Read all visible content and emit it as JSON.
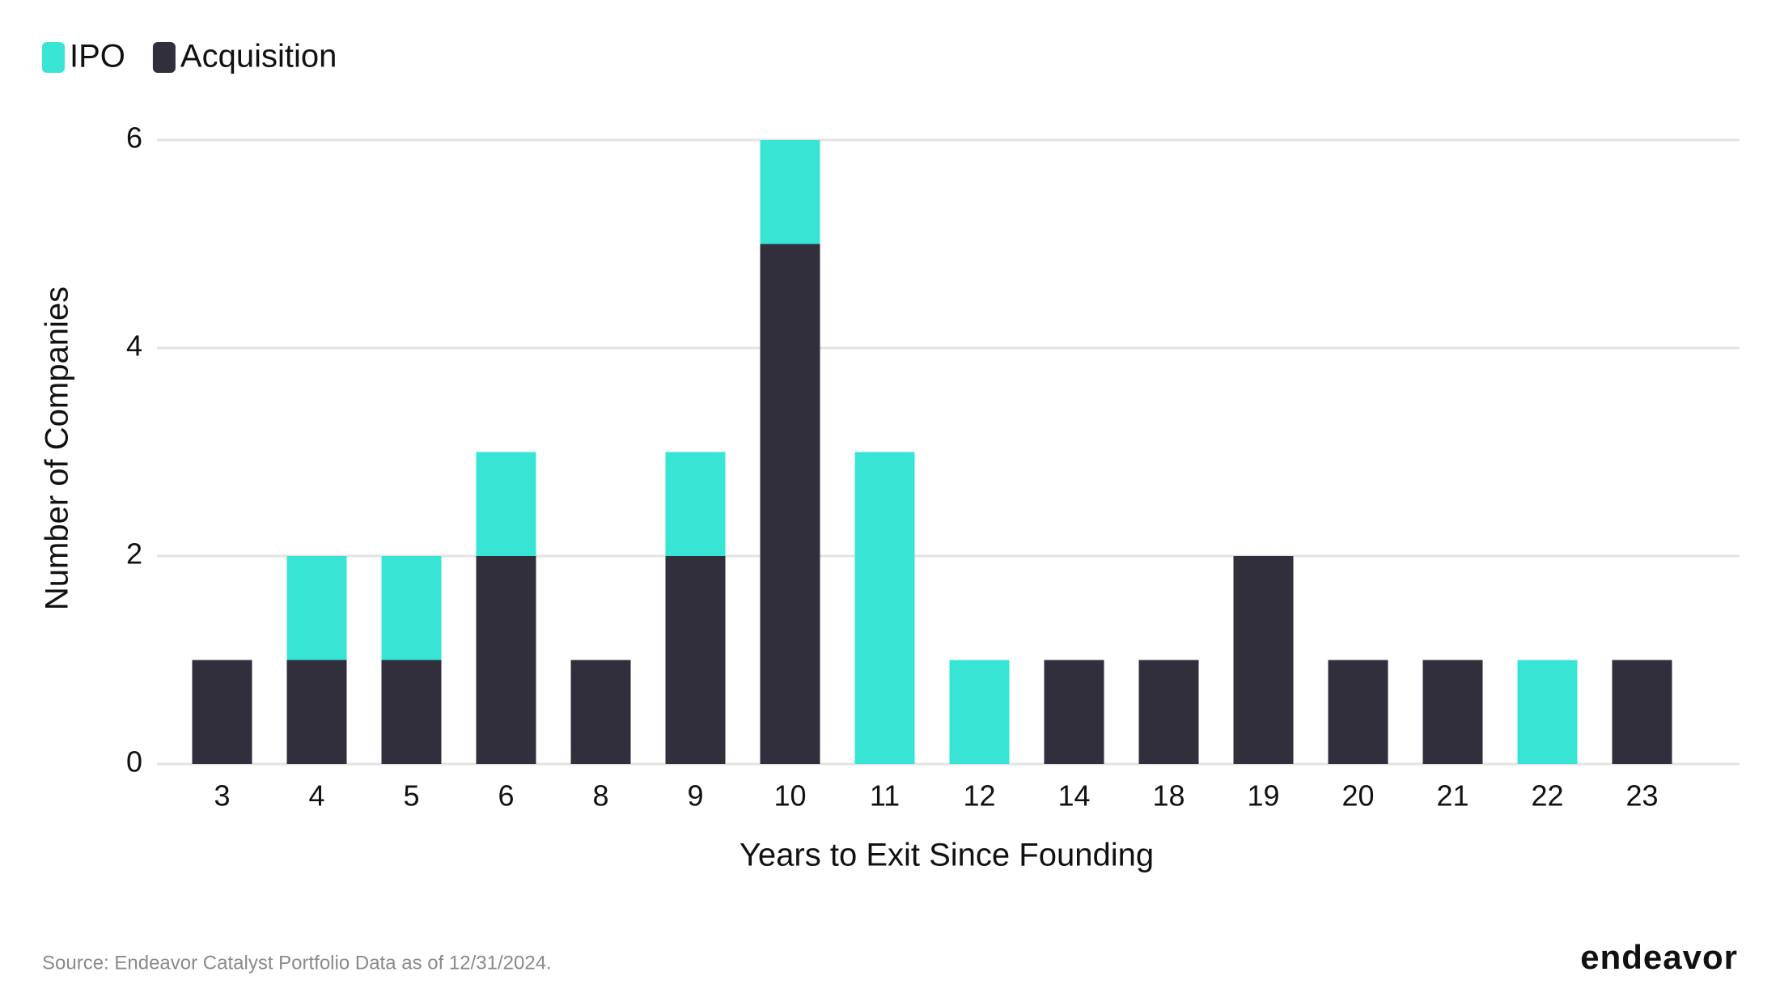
{
  "chart_data": {
    "type": "stacked-bar",
    "x_label": "Years to Exit Since Founding",
    "y_label": "Number of Companies",
    "categories": [
      "3",
      "4",
      "5",
      "6",
      "8",
      "9",
      "10",
      "11",
      "12",
      "14",
      "18",
      "19",
      "20",
      "21",
      "22",
      "23"
    ],
    "series": [
      {
        "name": "Acquisition",
        "color": "#302f3b",
        "values": [
          1,
          1,
          1,
          2,
          1,
          2,
          5,
          0,
          0,
          1,
          1,
          2,
          1,
          1,
          0,
          1
        ]
      },
      {
        "name": "IPO",
        "color": "#38e5d5",
        "values": [
          0,
          1,
          1,
          1,
          0,
          1,
          1,
          3,
          1,
          0,
          0,
          0,
          0,
          0,
          1,
          0
        ]
      }
    ],
    "legend_order": [
      1,
      0
    ],
    "ylim": [
      0,
      6
    ],
    "yticks": [
      0,
      2,
      4,
      6
    ],
    "grid": true,
    "source": "Source: Endeavor Catalyst Portfolio Data as of 12/31/2024.",
    "logo": "endeavor"
  }
}
